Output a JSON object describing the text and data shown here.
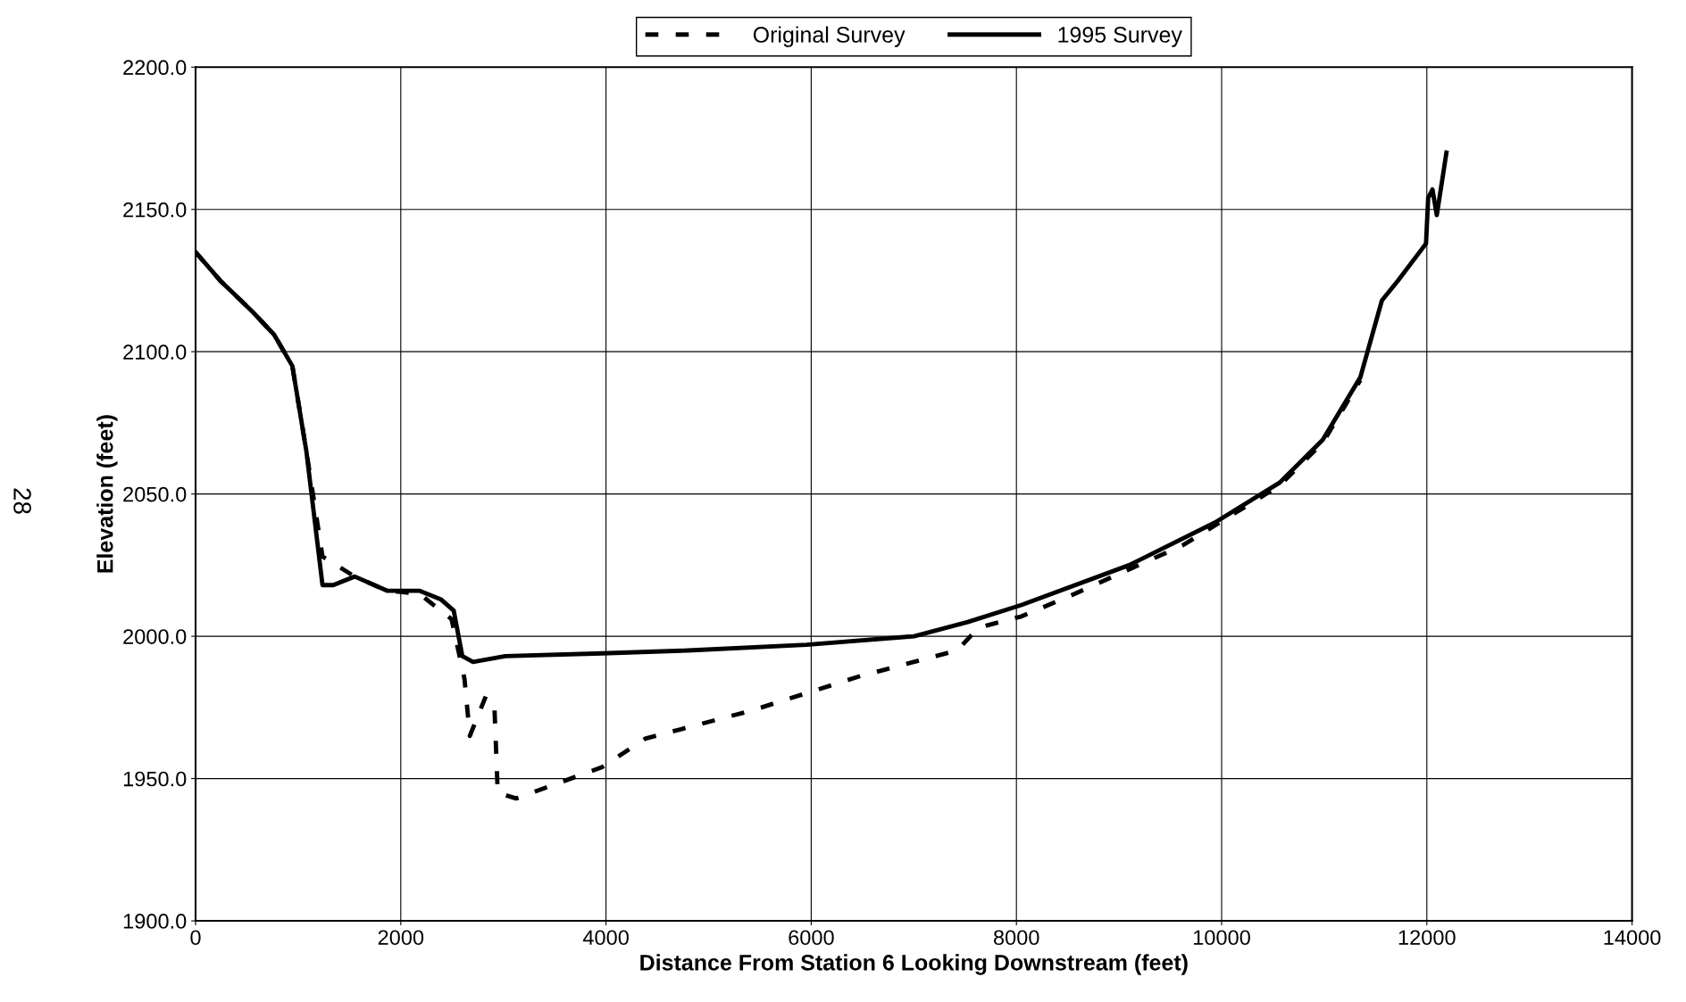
{
  "chart_data": {
    "type": "line",
    "xlabel": "Distance From Station 6 Looking Downstream (feet)",
    "ylabel": "Elevation (feet)",
    "xlim": [
      0,
      14000
    ],
    "xticks": [
      0,
      2000,
      4000,
      6000,
      8000,
      10000,
      12000,
      14000
    ],
    "ylim": [
      1900,
      2200
    ],
    "yticks": [
      {
        "value": 1900,
        "label": "1900.0"
      },
      {
        "value": 1950,
        "label": "1950.0"
      },
      {
        "value": 2000,
        "label": "2000.0"
      },
      {
        "value": 2050,
        "label": "2050.0"
      },
      {
        "value": 2100,
        "label": "2100.0"
      },
      {
        "value": 2150,
        "label": "2150.0"
      },
      {
        "value": 2200,
        "label": "2200.0"
      }
    ],
    "grid": true,
    "legend": "top",
    "annotations": [
      "28"
    ],
    "series": [
      {
        "name": "Original Survey",
        "color": "#000000",
        "line_style": "dashed",
        "x": [
          0,
          240,
          556,
          765,
          943,
          1080,
          1237,
          1551,
          1866,
          2180,
          2495,
          2621,
          2673,
          2830,
          2914,
          2945,
          3124,
          3962,
          4381,
          5429,
          6477,
          7421,
          7631,
          8050,
          8574,
          9623,
          10566,
          10985,
          11352
        ],
        "values": [
          2135,
          2125,
          2114,
          2106,
          2095,
          2065,
          2028,
          2021,
          2016,
          2015,
          2006,
          1985,
          1965,
          1979,
          1974,
          1945,
          1943,
          1954,
          1964,
          1974,
          1986,
          1995,
          2003,
          2007,
          2015,
          2032,
          2053,
          2068,
          2090
        ]
      },
      {
        "name": "1995 Survey",
        "color": "#000000",
        "line_style": "solid",
        "x": [
          0,
          240,
          556,
          765,
          943,
          1080,
          1237,
          1342,
          1551,
          1866,
          2180,
          2390,
          2516,
          2600,
          2704,
          3019,
          3962,
          4800,
          5954,
          7002,
          7526,
          8050,
          9099,
          9937,
          10566,
          10985,
          11352,
          11562,
          11719,
          11950,
          11992,
          12013,
          12055,
          12097,
          12191
        ],
        "values": [
          2135,
          2125,
          2114,
          2106,
          2095,
          2065,
          2018,
          2018,
          2021,
          2016,
          2016,
          2013,
          2009,
          1993,
          1991,
          1993,
          1994,
          1995,
          1997,
          2000,
          2005,
          2011,
          2025,
          2040,
          2054,
          2069,
          2091,
          2118,
          2125,
          2136,
          2138,
          2154,
          2157,
          2148,
          2170
        ]
      }
    ]
  }
}
